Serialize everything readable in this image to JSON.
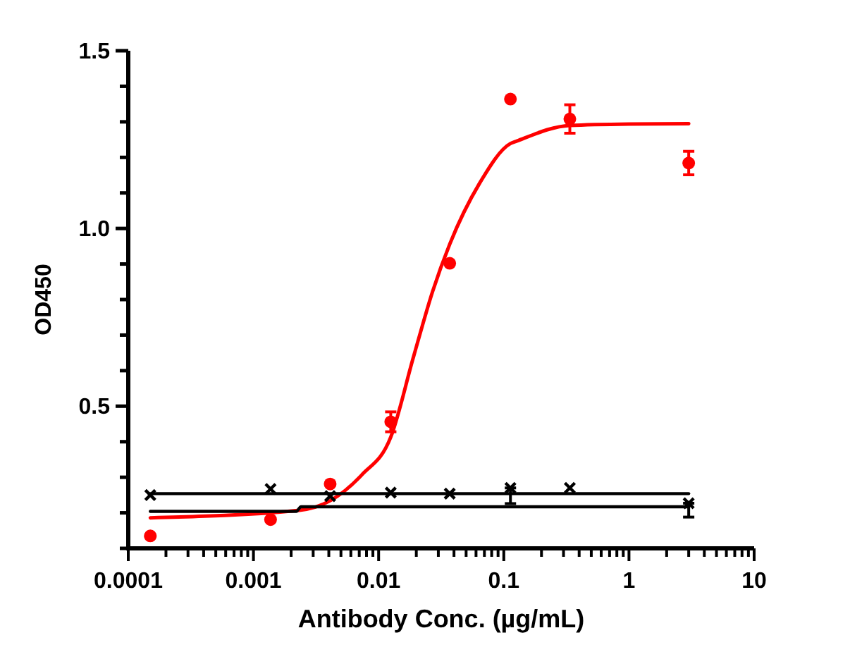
{
  "chart_data": {
    "type": "scatter",
    "xlabel": "Antibody Conc. (µg/mL)",
    "ylabel": "OD450",
    "log": "x",
    "grid": false,
    "xlim": [
      0.0001,
      10
    ],
    "ylim": [
      0.1,
      1.5
    ],
    "xticks": [
      0.0001,
      {
        "value": 0.0002,
        "label": null
      },
      {
        "value": 0.0003,
        "label": null
      },
      {
        "value": 0.0004,
        "label": null
      },
      {
        "value": 0.0005,
        "label": null
      },
      {
        "value": 0.0006,
        "label": null
      },
      {
        "value": 0.0007,
        "label": null
      },
      {
        "value": 0.0008,
        "label": null
      },
      {
        "value": 0.0009,
        "label": null
      },
      0.001,
      {
        "value": 0.002,
        "label": null
      },
      {
        "value": 0.003,
        "label": null
      },
      {
        "value": 0.004,
        "label": null
      },
      {
        "value": 0.005,
        "label": null
      },
      {
        "value": 0.006,
        "label": null
      },
      {
        "value": 0.007,
        "label": null
      },
      {
        "value": 0.008,
        "label": null
      },
      {
        "value": 0.009,
        "label": null
      },
      0.01,
      {
        "value": 0.02,
        "label": null
      },
      {
        "value": 0.03,
        "label": null
      },
      {
        "value": 0.04,
        "label": null
      },
      {
        "value": 0.05,
        "label": null
      },
      {
        "value": 0.06,
        "label": null
      },
      {
        "value": 0.07,
        "label": null
      },
      {
        "value": 0.08,
        "label": null
      },
      {
        "value": 0.09,
        "label": null
      },
      0.1,
      {
        "value": 0.2,
        "label": null
      },
      {
        "value": 0.3,
        "label": null
      },
      {
        "value": 0.4,
        "label": null
      },
      {
        "value": 0.5,
        "label": null
      },
      {
        "value": 0.6,
        "label": null
      },
      {
        "value": 0.7,
        "label": null
      },
      {
        "value": 0.8,
        "label": null
      },
      {
        "value": 0.9,
        "label": null
      },
      1,
      {
        "value": 2,
        "label": null
      },
      {
        "value": 3,
        "label": null
      },
      {
        "value": 4,
        "label": null
      },
      {
        "value": 5,
        "label": null
      },
      {
        "value": 6,
        "label": null
      },
      {
        "value": 7,
        "label": null
      },
      {
        "value": 8,
        "label": null
      },
      {
        "value": 9,
        "label": null
      },
      10
    ],
    "yticks": [
      {
        "value": 0.1,
        "label": null
      },
      {
        "value": 0.2,
        "label": null
      },
      {
        "value": 0.3,
        "label": null
      },
      {
        "value": 0.4,
        "label": null
      },
      0.5,
      {
        "value": 0.6,
        "label": null
      },
      {
        "value": 0.7,
        "label": null
      },
      {
        "value": 0.8,
        "label": null
      },
      {
        "value": 0.9,
        "label": null
      },
      {
        "value": 1,
        "label": "1.0"
      },
      {
        "value": 1.1,
        "label": null
      },
      {
        "value": 1.2,
        "label": null
      },
      {
        "value": 1.3,
        "label": null
      },
      {
        "value": 1.4,
        "label": null
      },
      1.5
    ],
    "series": [
      {
        "type": "line",
        "color": "#ff0000",
        "marker": "none",
        "x": [
          0.00015,
          0.00233,
          0.0041,
          0.00735,
          0.0125,
          0.019,
          0.027,
          0.037,
          0.064,
          0.113,
          0.127,
          0.337,
          1,
          3
        ],
        "values": [
          0.186,
          0.207,
          0.234,
          0.307,
          0.413,
          0.639,
          0.823,
          0.956,
          1.127,
          1.239,
          1.246,
          1.29,
          1.294,
          1.295
        ]
      },
      {
        "type": "line",
        "color": "#000000",
        "marker": "none",
        "x": [
          0.00015,
          3
        ],
        "values": [
          0.254,
          0.254
        ]
      },
      {
        "type": "line",
        "color": "#000000",
        "marker": "none",
        "x": [
          0.00015,
          0.0022,
          0.0024,
          3
        ],
        "values": [
          0.204,
          0.204,
          0.217,
          0.217
        ]
      },
      {
        "color": "#ff0000",
        "marker": "circle",
        "x": [
          0.00015,
          0.00137,
          0.0041,
          0.0125,
          0.037,
          0.113,
          0.337,
          3
        ],
        "values": [
          0.135,
          0.181,
          0.281,
          0.456,
          0.902,
          1.364,
          1.308,
          1.184
        ],
        "errors": [
          null,
          null,
          null,
          0.028,
          null,
          null,
          0.04,
          0.033
        ]
      },
      {
        "color": "#000000",
        "marker": "cross",
        "x": [
          0.00015,
          0.00137,
          0.0041,
          0.0125,
          0.037,
          0.113,
          0.337,
          3
        ],
        "values": [
          0.25,
          0.267,
          0.247,
          0.257,
          0.254,
          0.27,
          0.27,
          0.227
        ],
        "errors": [
          null,
          null,
          null,
          null,
          null,
          [
            0.226,
            0.27
          ],
          null,
          [
            0.188,
            0.227
          ]
        ]
      }
    ]
  }
}
